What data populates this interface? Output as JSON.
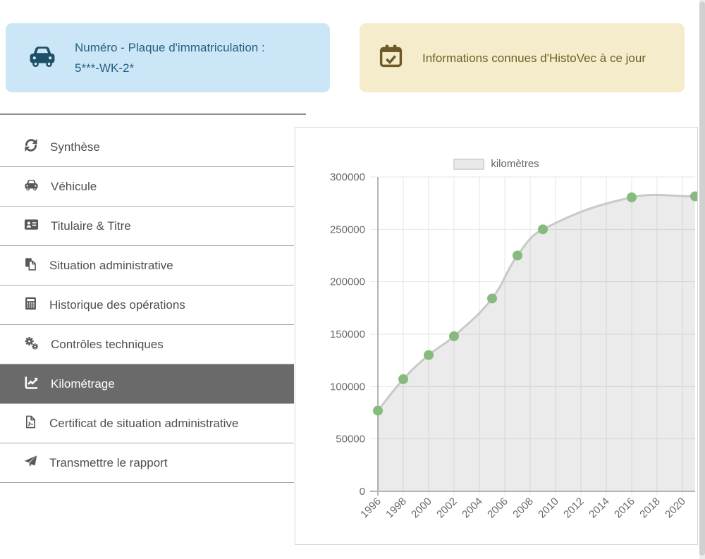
{
  "cards": {
    "plate": {
      "icon": "car-icon",
      "label": "Numéro - Plaque d'immatriculation :",
      "value": "5***-WK-2*"
    },
    "info": {
      "icon": "calendar-check-icon",
      "text": "Informations connues d'HistoVec à ce jour"
    }
  },
  "sidebar": {
    "items": [
      {
        "label": "Synthèse",
        "icon": "sync-icon",
        "active": false
      },
      {
        "label": "Véhicule",
        "icon": "car-icon",
        "active": false
      },
      {
        "label": "Titulaire & Titre",
        "icon": "id-card-icon",
        "active": false
      },
      {
        "label": "Situation administrative",
        "icon": "copy-icon",
        "active": false
      },
      {
        "label": "Historique des opérations",
        "icon": "calculator-icon",
        "active": false
      },
      {
        "label": "Contrôles techniques",
        "icon": "cogs-icon",
        "active": false
      },
      {
        "label": "Kilométrage",
        "icon": "chart-line-icon",
        "active": true
      },
      {
        "label": "Certificat de situation administrative",
        "icon": "file-pdf-icon",
        "active": false
      },
      {
        "label": "Transmettre le rapport",
        "icon": "paper-plane-icon",
        "active": false
      }
    ]
  },
  "chart_data": {
    "type": "area",
    "legend": "kilomètres",
    "title": "",
    "xlabel": "",
    "ylabel": "",
    "x": [
      1996,
      1998,
      2000,
      2002,
      2005,
      2007,
      2009,
      2016,
      2021
    ],
    "values": [
      77000,
      107000,
      130000,
      148000,
      184000,
      225000,
      250000,
      280500,
      281500
    ],
    "x_ticks": [
      1996,
      1998,
      2000,
      2002,
      2004,
      2006,
      2008,
      2010,
      2012,
      2014,
      2016,
      2018,
      2020
    ],
    "y_ticks": [
      0,
      50000,
      100000,
      150000,
      200000,
      250000,
      300000
    ],
    "xlim": [
      1996,
      2021
    ],
    "ylim": [
      0,
      300000
    ],
    "grid": true,
    "legend_position": "top",
    "colors": {
      "point": "#87ba7e",
      "line": "#c9c9c9",
      "fill": "rgba(0,0,0,0.08)",
      "grid": "#e6e6e6",
      "axis": "#b5b5b5"
    }
  },
  "colors": {
    "card_blue_bg": "#cbe7f7",
    "card_blue_text": "#26607f",
    "card_yellow_bg": "#f4ecca",
    "card_yellow_text": "#716028",
    "active_item_bg": "#6a6a6a"
  }
}
